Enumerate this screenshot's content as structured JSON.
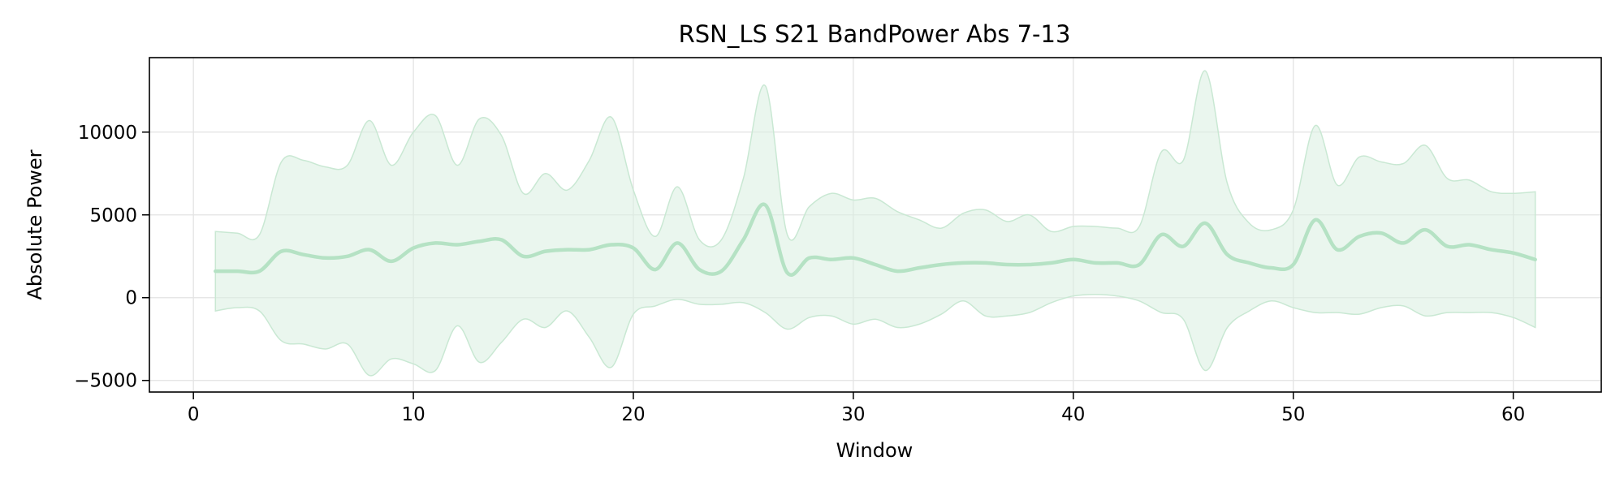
{
  "chart_data": {
    "type": "line",
    "title": "RSN_LS S21 BandPower Abs 7-13",
    "xlabel": "Window",
    "ylabel": "Absolute Power",
    "xlim": [
      -2,
      64
    ],
    "ylim": [
      -5700,
      14500
    ],
    "xticks": [
      0,
      10,
      20,
      30,
      40,
      50,
      60
    ],
    "yticks": [
      -5000,
      0,
      5000,
      10000
    ],
    "ytick_labels": [
      "−5000",
      "0",
      "5000",
      "10000"
    ],
    "grid": true,
    "legend": "none",
    "colors": {
      "line": "#b5e2c4",
      "band": "#d8efe0"
    },
    "series": [
      {
        "x": [
          1,
          2,
          3,
          4,
          5,
          6,
          7,
          8,
          9,
          10,
          11,
          12,
          13,
          14,
          15,
          16,
          17,
          18,
          19,
          20,
          21,
          22,
          23,
          24,
          25,
          26,
          27,
          28,
          29,
          30,
          31,
          32,
          33,
          34,
          35,
          36,
          37,
          38,
          39,
          40,
          41,
          42,
          43,
          44,
          45,
          46,
          47,
          48,
          49,
          50,
          51,
          52,
          53,
          54,
          55,
          56,
          57,
          58,
          59,
          60,
          61
        ],
        "mean": [
          1600,
          1600,
          1600,
          2800,
          2600,
          2400,
          2500,
          2900,
          2200,
          3000,
          3300,
          3200,
          3400,
          3500,
          2500,
          2800,
          2900,
          2900,
          3200,
          3000,
          1700,
          3300,
          1700,
          1600,
          3500,
          5600,
          1500,
          2400,
          2300,
          2400,
          2000,
          1600,
          1800,
          2000,
          2100,
          2100,
          2000,
          2000,
          2100,
          2300,
          2100,
          2100,
          2000,
          3800,
          3100,
          4500,
          2600,
          2100,
          1800,
          2000,
          4700,
          2900,
          3700,
          3900,
          3300,
          4100,
          3100,
          3200,
          2900,
          2700,
          2300
        ],
        "upper": [
          4000,
          3900,
          3800,
          8200,
          8300,
          7900,
          8000,
          10700,
          8000,
          10000,
          11000,
          8000,
          10800,
          9800,
          6300,
          7500,
          6500,
          8300,
          10900,
          6500,
          3700,
          6700,
          3500,
          3500,
          7200,
          12800,
          3800,
          5500,
          6300,
          5900,
          6000,
          5200,
          4700,
          4200,
          5100,
          5300,
          4600,
          5000,
          4000,
          4300,
          4300,
          4200,
          4300,
          8800,
          8300,
          13700,
          6900,
          4500,
          4100,
          5300,
          10400,
          6800,
          8500,
          8200,
          8100,
          9200,
          7200,
          7100,
          6400,
          6300,
          6400
        ],
        "lower": [
          -800,
          -600,
          -800,
          -2600,
          -2800,
          -3100,
          -2800,
          -4700,
          -3700,
          -4000,
          -4400,
          -1700,
          -3900,
          -2700,
          -1300,
          -1800,
          -800,
          -2400,
          -4200,
          -1000,
          -500,
          -100,
          -400,
          -400,
          -300,
          -900,
          -1900,
          -1200,
          -1100,
          -1600,
          -1300,
          -1800,
          -1600,
          -1000,
          -200,
          -1100,
          -1100,
          -900,
          -300,
          100,
          200,
          100,
          -200,
          -900,
          -1300,
          -4400,
          -1800,
          -800,
          -200,
          -600,
          -900,
          -900,
          -1000,
          -600,
          -500,
          -1100,
          -900,
          -900,
          -900,
          -1200,
          -1800
        ]
      }
    ]
  }
}
